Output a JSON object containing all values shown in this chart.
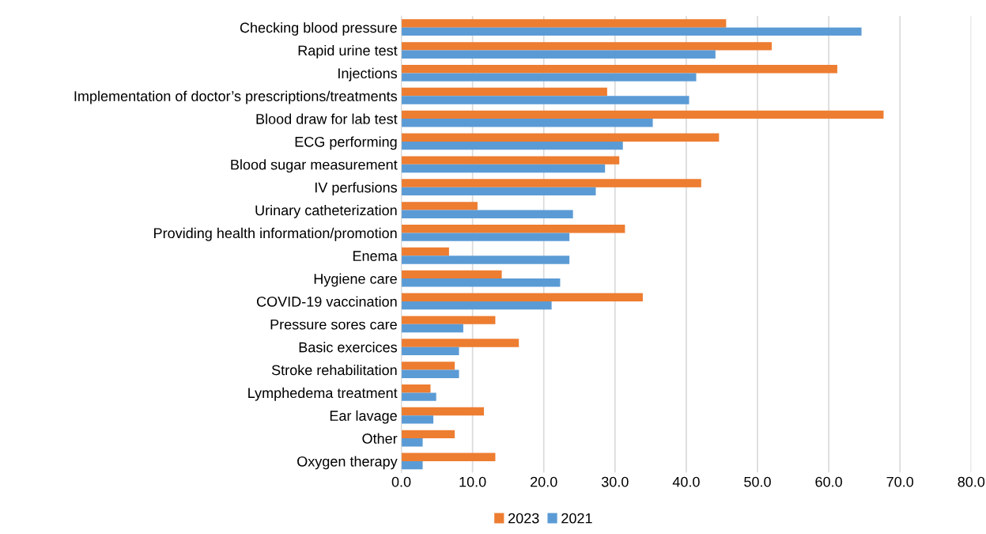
{
  "chart_data": {
    "type": "bar",
    "orientation": "horizontal",
    "categories": [
      "Checking blood pressure",
      "Rapid urine test",
      "Injections",
      "Implementation of doctor’s prescriptions/treatments",
      "Blood draw for lab test",
      "ECG performing",
      "Blood sugar measurement",
      "IV perfusions",
      "Urinary catheterization",
      "Providing health information/promotion",
      "Enema",
      "Hygiene care",
      "COVID-19 vaccination",
      "Pressure sores care",
      "Basic exercices",
      "Stroke rehabilitation",
      "Lymphedema treatment",
      "Ear lavage",
      "Other",
      "Oxygen therapy"
    ],
    "series": [
      {
        "name": "2023",
        "color": "#ed7d31",
        "values": [
          45.6,
          52.0,
          61.2,
          28.9,
          67.7,
          44.6,
          30.6,
          42.1,
          10.7,
          31.4,
          6.7,
          14.1,
          33.9,
          13.2,
          16.5,
          7.5,
          4.1,
          11.6,
          7.5,
          13.2
        ]
      },
      {
        "name": "2021",
        "color": "#5b9bd5",
        "values": [
          64.6,
          44.1,
          41.4,
          40.4,
          35.3,
          31.1,
          28.6,
          27.3,
          24.1,
          23.6,
          23.6,
          22.3,
          21.1,
          8.7,
          8.1,
          8.1,
          4.9,
          4.5,
          3.0,
          3.0
        ]
      }
    ],
    "xlim": [
      0,
      80
    ],
    "xticks": [
      {
        "value": 0,
        "label": "0.0"
      },
      {
        "value": 10,
        "label": "10.0"
      },
      {
        "value": 20,
        "label": "20.0"
      },
      {
        "value": 30,
        "label": "30.0"
      },
      {
        "value": 40,
        "label": "40.0"
      },
      {
        "value": 50,
        "label": "50.0"
      },
      {
        "value": 60,
        "label": "60.0"
      },
      {
        "value": 70,
        "label": "70.0"
      },
      {
        "value": 80,
        "label": "80.0"
      }
    ],
    "grid": "x",
    "legend": "bottom"
  }
}
